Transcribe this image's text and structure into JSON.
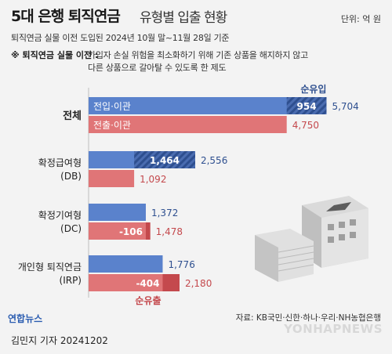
{
  "header": {
    "title_main": "5대 은행 퇴직연금",
    "title_sub": "유형별 입출 현황",
    "unit": "단위: 억 원",
    "subtitle": "퇴직연금 실물 이전 도입된 2024년 10월 말~11월 28일 기준",
    "note_label": "※ 퇴직연금 실물 이전 :",
    "note_line1": "가입자 손실 위험을 최소화하기 위해 기존 상품을 해지하지 않고",
    "note_line2": "다른 상품으로 갈아탈 수 있도록 한 제도"
  },
  "chart_data": {
    "type": "bar",
    "orientation": "horizontal",
    "categories": [
      "전체",
      "확정급여형\n(DB)",
      "확정기여형\n(DC)",
      "개인형 퇴직연금\n(IRP)"
    ],
    "series": [
      {
        "name": "전입·이관",
        "values": [
          5704,
          2556,
          1372,
          1776
        ],
        "color": "#5a82cc"
      },
      {
        "name": "전출·이관",
        "values": [
          4750,
          1092,
          1478,
          2180
        ],
        "color": "#e07577"
      }
    ],
    "net_inflow_label": "순유입",
    "net_outflow_label": "순유출",
    "net_values": [
      954,
      1464,
      -106,
      -404
    ],
    "value_labels": [
      [
        "5,704",
        "4,750"
      ],
      [
        "2,556",
        "1,092"
      ],
      [
        "1,372",
        "1,478"
      ],
      [
        "1,776",
        "2,180"
      ]
    ],
    "net_labels": [
      "954",
      "1,464",
      "-106",
      "-404"
    ],
    "grid": false
  },
  "footer": {
    "logo": "연합뉴스",
    "source": "자료: KB국민·신한·하나·우리·NH농협은행",
    "reporter": "김민지 기자  20241202",
    "watermark": "YONHAPNEWS"
  },
  "colors": {
    "blue": "#5a82cc",
    "red": "#e07577",
    "net_blue": "#2e4f8f",
    "net_red": "#c4494d",
    "blue_text": "#2e4f8f",
    "red_text": "#c4494d"
  }
}
